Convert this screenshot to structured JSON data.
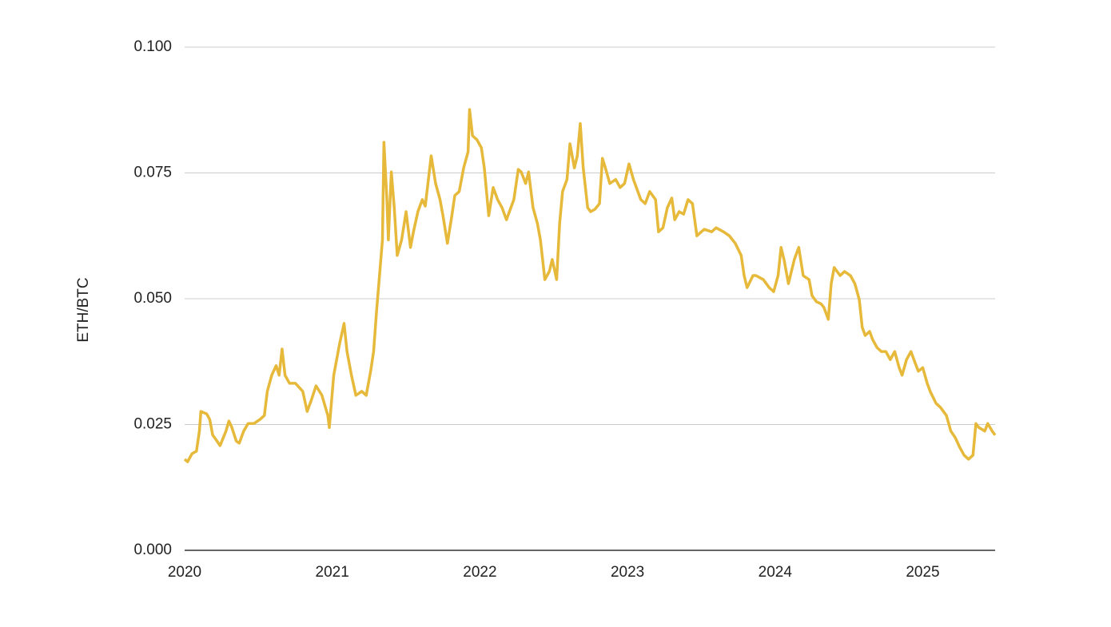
{
  "chart_data": {
    "type": "line",
    "ylabel": "ETH/BTC",
    "x": [
      2020.0,
      2020.02,
      2020.05,
      2020.08,
      2020.1,
      2020.11,
      2020.15,
      2020.17,
      2020.19,
      2020.21,
      2020.24,
      2020.28,
      2020.3,
      2020.32,
      2020.35,
      2020.37,
      2020.4,
      2020.43,
      2020.47,
      2020.51,
      2020.54,
      2020.56,
      2020.59,
      2020.62,
      2020.64,
      2020.66,
      2020.68,
      2020.71,
      2020.75,
      2020.8,
      2020.83,
      2020.86,
      2020.89,
      2020.93,
      2020.97,
      2020.98,
      2021.01,
      2021.05,
      2021.08,
      2021.1,
      2021.13,
      2021.16,
      2021.2,
      2021.23,
      2021.26,
      2021.28,
      2021.3,
      2021.32,
      2021.34,
      2021.35,
      2021.37,
      2021.38,
      2021.4,
      2021.42,
      2021.44,
      2021.47,
      2021.5,
      2021.53,
      2021.55,
      2021.58,
      2021.61,
      2021.63,
      2021.67,
      2021.7,
      2021.73,
      2021.75,
      2021.78,
      2021.81,
      2021.83,
      2021.86,
      2021.89,
      2021.92,
      2021.93,
      2021.95,
      2021.98,
      2022.01,
      2022.03,
      2022.06,
      2022.09,
      2022.12,
      2022.15,
      2022.18,
      2022.2,
      2022.23,
      2022.26,
      2022.28,
      2022.31,
      2022.33,
      2022.36,
      2022.39,
      2022.41,
      2022.44,
      2022.47,
      2022.49,
      2022.52,
      2022.54,
      2022.56,
      2022.59,
      2022.61,
      2022.64,
      2022.66,
      2022.68,
      2022.7,
      2022.73,
      2022.75,
      2022.78,
      2022.81,
      2022.83,
      2022.85,
      2022.88,
      2022.92,
      2022.95,
      2022.98,
      2023.01,
      2023.04,
      2023.06,
      2023.09,
      2023.12,
      2023.15,
      2023.19,
      2023.21,
      2023.24,
      2023.27,
      2023.3,
      2023.32,
      2023.35,
      2023.38,
      2023.41,
      2023.44,
      2023.47,
      2023.5,
      2023.52,
      2023.57,
      2023.6,
      2023.65,
      2023.69,
      2023.73,
      2023.77,
      2023.79,
      2023.81,
      2023.85,
      2023.87,
      2023.92,
      2023.96,
      2023.99,
      2024.02,
      2024.04,
      2024.06,
      2024.09,
      2024.11,
      2024.13,
      2024.16,
      2024.19,
      2024.23,
      2024.25,
      2024.28,
      2024.31,
      2024.33,
      2024.36,
      2024.38,
      2024.4,
      2024.44,
      2024.47,
      2024.51,
      2024.54,
      2024.57,
      2024.59,
      2024.61,
      2024.64,
      2024.66,
      2024.69,
      2024.72,
      2024.75,
      2024.78,
      2024.81,
      2024.84,
      2024.86,
      2024.89,
      2024.92,
      2024.95,
      2024.97,
      2025.0,
      2025.03,
      2025.05,
      2025.09,
      2025.12,
      2025.16,
      2025.19,
      2025.22,
      2025.25,
      2025.28,
      2025.31,
      2025.34,
      2025.36,
      2025.38,
      2025.42,
      2025.44,
      2025.47,
      2025.49
    ],
    "series": [
      {
        "name": "ETH/BTC",
        "color": "#e6b93a",
        "values": [
          0.0181,
          0.0176,
          0.0192,
          0.0197,
          0.0237,
          0.0276,
          0.0271,
          0.026,
          0.0229,
          0.0221,
          0.0208,
          0.0237,
          0.0257,
          0.0244,
          0.0217,
          0.0213,
          0.0237,
          0.0252,
          0.0252,
          0.026,
          0.0268,
          0.0316,
          0.0348,
          0.0367,
          0.0348,
          0.04,
          0.0348,
          0.0332,
          0.0332,
          0.0316,
          0.0276,
          0.03,
          0.0327,
          0.0308,
          0.0268,
          0.0244,
          0.0348,
          0.0411,
          0.0451,
          0.0395,
          0.0348,
          0.0308,
          0.0316,
          0.0308,
          0.0356,
          0.0395,
          0.0475,
          0.0546,
          0.0617,
          0.0811,
          0.0697,
          0.0617,
          0.0752,
          0.0681,
          0.0586,
          0.0617,
          0.0673,
          0.0602,
          0.0633,
          0.0673,
          0.0697,
          0.0684,
          0.0784,
          0.0729,
          0.0697,
          0.0665,
          0.061,
          0.0665,
          0.0705,
          0.0713,
          0.076,
          0.0792,
          0.0876,
          0.0824,
          0.0816,
          0.08,
          0.076,
          0.0665,
          0.0721,
          0.0697,
          0.0681,
          0.0657,
          0.0673,
          0.0697,
          0.0757,
          0.0752,
          0.0729,
          0.0752,
          0.0681,
          0.0649,
          0.0617,
          0.0538,
          0.0554,
          0.0578,
          0.0538,
          0.0649,
          0.0713,
          0.0737,
          0.0808,
          0.076,
          0.0784,
          0.0848,
          0.076,
          0.0681,
          0.0673,
          0.0678,
          0.0689,
          0.0779,
          0.076,
          0.0729,
          0.0737,
          0.0721,
          0.0729,
          0.0768,
          0.0737,
          0.0721,
          0.0697,
          0.0689,
          0.0713,
          0.0697,
          0.0633,
          0.0641,
          0.0681,
          0.07,
          0.0657,
          0.0673,
          0.0668,
          0.0697,
          0.0689,
          0.0625,
          0.0633,
          0.0638,
          0.0633,
          0.0641,
          0.0633,
          0.0625,
          0.061,
          0.0586,
          0.0546,
          0.0522,
          0.0546,
          0.0546,
          0.0538,
          0.0522,
          0.0514,
          0.0546,
          0.0602,
          0.0578,
          0.053,
          0.0554,
          0.0578,
          0.0602,
          0.0546,
          0.0538,
          0.0506,
          0.0494,
          0.049,
          0.0483,
          0.0459,
          0.053,
          0.0562,
          0.0546,
          0.0554,
          0.0546,
          0.053,
          0.0498,
          0.0443,
          0.0427,
          0.0435,
          0.0419,
          0.0403,
          0.0395,
          0.0395,
          0.0379,
          0.0395,
          0.0363,
          0.0348,
          0.0379,
          0.0395,
          0.0371,
          0.0356,
          0.0363,
          0.0332,
          0.0316,
          0.0292,
          0.0284,
          0.0268,
          0.0237,
          0.0224,
          0.0205,
          0.0189,
          0.0181,
          0.0189,
          0.0252,
          0.0244,
          0.0237,
          0.0252,
          0.0237,
          0.0229
        ]
      }
    ],
    "xlim": [
      2020,
      2025.49
    ],
    "xticks": [
      2020,
      2021,
      2022,
      2023,
      2024,
      2025
    ],
    "ylim": [
      0,
      0.1
    ],
    "yticks": [
      {
        "value": 0,
        "label": "0.000"
      },
      {
        "value": 0.025,
        "label": "0.025"
      },
      {
        "value": 0.05,
        "label": "0.050"
      },
      {
        "value": 0.075,
        "label": "0.075"
      },
      {
        "value": 0.1,
        "label": "0.100"
      }
    ],
    "grid": true
  }
}
